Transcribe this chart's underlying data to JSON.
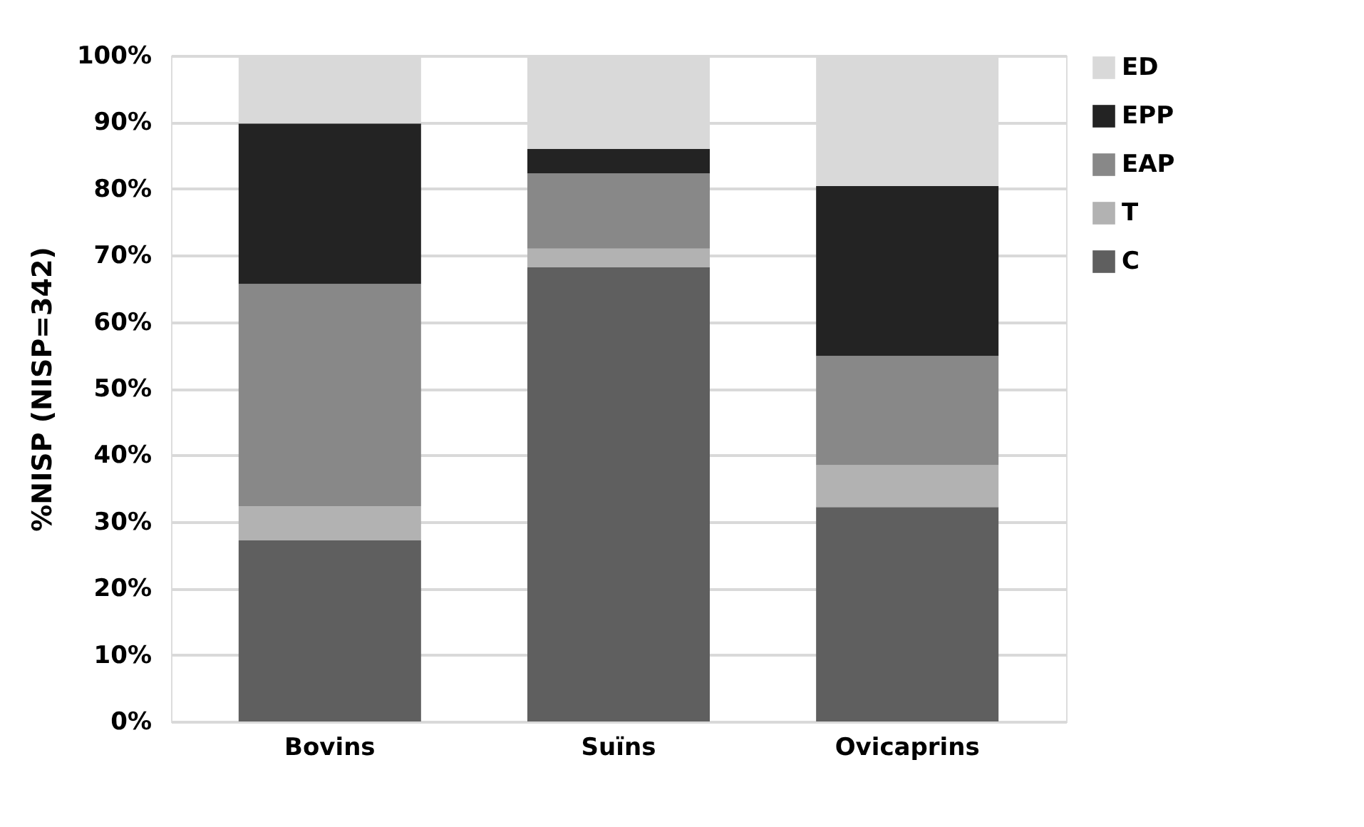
{
  "chart_data": {
    "type": "bar",
    "stacked": true,
    "ylabel": "%NISP (NISP=342)",
    "categories": [
      "Bovins",
      "Suïns",
      "Ovicaprins"
    ],
    "series": [
      {
        "name": "C",
        "color": "#5f5f5f",
        "values": [
          27.2,
          68.2,
          32.2
        ]
      },
      {
        "name": "T",
        "color": "#b2b2b2",
        "values": [
          5.1,
          2.8,
          6.3
        ]
      },
      {
        "name": "EAP",
        "color": "#888888",
        "values": [
          33.4,
          11.3,
          16.4
        ]
      },
      {
        "name": "EPP",
        "color": "#232323",
        "values": [
          24.1,
          3.7,
          25.5
        ]
      },
      {
        "name": "ED",
        "color": "#d9d9d9",
        "values": [
          10.2,
          14.0,
          19.6
        ]
      }
    ],
    "ylim": [
      0,
      100
    ],
    "yticks": [
      {
        "value": 0,
        "label": "0%"
      },
      {
        "value": 10,
        "label": "10%"
      },
      {
        "value": 20,
        "label": "20%"
      },
      {
        "value": 30,
        "label": "30%"
      },
      {
        "value": 40,
        "label": "40%"
      },
      {
        "value": 50,
        "label": "50%"
      },
      {
        "value": 60,
        "label": "60%"
      },
      {
        "value": 70,
        "label": "70%"
      },
      {
        "value": 80,
        "label": "80%"
      },
      {
        "value": 90,
        "label": "90%"
      },
      {
        "value": 100,
        "label": "100%"
      }
    ],
    "grid": "y",
    "legend": "right"
  }
}
